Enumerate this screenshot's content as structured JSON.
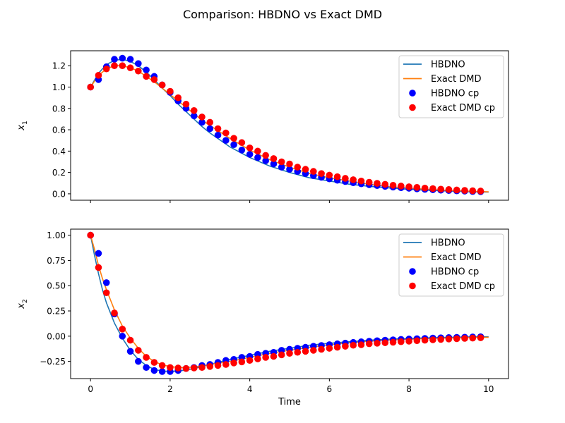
{
  "figure": {
    "title": "Comparison: HBDNO vs Exact DMD"
  },
  "chart_data": [
    {
      "type": "line+scatter",
      "title": "",
      "xlabel": "",
      "ylabel": "x₁",
      "ylabel_main": "x",
      "ylabel_sub": "1",
      "xlim": [
        -0.5,
        10.5
      ],
      "ylim": [
        -0.06,
        1.34
      ],
      "xticks": [
        0,
        2,
        4,
        6,
        8,
        10
      ],
      "xtick_labels_visible": false,
      "yticks": [
        0.0,
        0.2,
        0.4,
        0.6,
        0.8,
        1.0,
        1.2
      ],
      "ytick_labels": [
        "0.0",
        "0.2",
        "0.4",
        "0.6",
        "0.8",
        "1.0",
        "1.2"
      ],
      "legend_position": "top-right",
      "legend": [
        "HBDNO",
        "Exact DMD",
        "HBDNO cp",
        "Exact DMD cp"
      ],
      "series": [
        {
          "name": "HBDNO",
          "kind": "line",
          "color": "#1f77b4",
          "x": [
            0,
            0.2,
            0.4,
            0.6,
            0.8,
            1.0,
            1.2,
            1.4,
            1.6,
            1.8,
            2.0,
            2.2,
            2.4,
            2.6,
            2.8,
            3.0,
            3.5,
            4.0,
            4.5,
            5.0,
            5.5,
            6.0,
            6.5,
            7.0,
            7.5,
            8.0,
            8.5,
            9.0,
            9.5,
            10.0
          ],
          "y": [
            1.0,
            1.13,
            1.21,
            1.25,
            1.26,
            1.24,
            1.2,
            1.14,
            1.07,
            0.99,
            0.92,
            0.84,
            0.77,
            0.7,
            0.63,
            0.57,
            0.44,
            0.34,
            0.26,
            0.2,
            0.15,
            0.12,
            0.09,
            0.07,
            0.055,
            0.042,
            0.033,
            0.026,
            0.02,
            0.016
          ]
        },
        {
          "name": "Exact DMD",
          "kind": "line",
          "color": "#ff7f0e",
          "x": [
            0,
            0.2,
            0.4,
            0.6,
            0.8,
            1.0,
            1.2,
            1.4,
            1.6,
            1.8,
            2.0,
            2.2,
            2.4,
            2.6,
            2.8,
            3.0,
            3.5,
            4.0,
            4.5,
            5.0,
            5.5,
            6.0,
            6.5,
            7.0,
            7.5,
            8.0,
            8.5,
            9.0,
            9.5,
            10.0
          ],
          "y": [
            1.0,
            1.11,
            1.17,
            1.2,
            1.2,
            1.18,
            1.15,
            1.1,
            1.05,
            0.99,
            0.93,
            0.87,
            0.81,
            0.75,
            0.69,
            0.64,
            0.52,
            0.41,
            0.32,
            0.25,
            0.19,
            0.15,
            0.12,
            0.09,
            0.068,
            0.053,
            0.041,
            0.032,
            0.025,
            0.019
          ]
        },
        {
          "name": "HBDNO cp",
          "kind": "scatter",
          "color": "#0000ff",
          "x": [
            0,
            0.2,
            0.4,
            0.6,
            0.8,
            1.0,
            1.2,
            1.4,
            1.6,
            1.8,
            2.0,
            2.2,
            2.4,
            2.6,
            2.8,
            3.0,
            3.2,
            3.4,
            3.6,
            3.8,
            4.0,
            4.2,
            4.4,
            4.6,
            4.8,
            5.0,
            5.2,
            5.4,
            5.6,
            5.8,
            6.0,
            6.2,
            6.4,
            6.6,
            6.8,
            7.0,
            7.2,
            7.4,
            7.6,
            7.8,
            8.0,
            8.2,
            8.4,
            8.6,
            8.8,
            9.0,
            9.2,
            9.4,
            9.6,
            9.8
          ],
          "y": [
            1.0,
            1.07,
            1.19,
            1.26,
            1.27,
            1.26,
            1.22,
            1.16,
            1.1,
            1.02,
            0.95,
            0.87,
            0.8,
            0.73,
            0.67,
            0.61,
            0.55,
            0.5,
            0.46,
            0.41,
            0.37,
            0.34,
            0.31,
            0.28,
            0.25,
            0.23,
            0.21,
            0.19,
            0.17,
            0.155,
            0.14,
            0.127,
            0.115,
            0.104,
            0.094,
            0.085,
            0.077,
            0.07,
            0.063,
            0.057,
            0.052,
            0.047,
            0.042,
            0.038,
            0.034,
            0.031,
            0.028,
            0.025,
            0.022,
            0.02
          ]
        },
        {
          "name": "Exact DMD cp",
          "kind": "scatter",
          "color": "#ff0000",
          "x": [
            0,
            0.2,
            0.4,
            0.6,
            0.8,
            1.0,
            1.2,
            1.4,
            1.6,
            1.8,
            2.0,
            2.2,
            2.4,
            2.6,
            2.8,
            3.0,
            3.2,
            3.4,
            3.6,
            3.8,
            4.0,
            4.2,
            4.4,
            4.6,
            4.8,
            5.0,
            5.2,
            5.4,
            5.6,
            5.8,
            6.0,
            6.2,
            6.4,
            6.6,
            6.8,
            7.0,
            7.2,
            7.4,
            7.6,
            7.8,
            8.0,
            8.2,
            8.4,
            8.6,
            8.8,
            9.0,
            9.2,
            9.4,
            9.6,
            9.8
          ],
          "y": [
            1.0,
            1.11,
            1.17,
            1.2,
            1.2,
            1.18,
            1.15,
            1.1,
            1.07,
            1.02,
            0.96,
            0.9,
            0.84,
            0.78,
            0.72,
            0.67,
            0.61,
            0.57,
            0.52,
            0.48,
            0.43,
            0.4,
            0.36,
            0.33,
            0.3,
            0.28,
            0.25,
            0.23,
            0.21,
            0.19,
            0.175,
            0.16,
            0.145,
            0.132,
            0.12,
            0.108,
            0.098,
            0.089,
            0.08,
            0.073,
            0.066,
            0.06,
            0.054,
            0.049,
            0.044,
            0.04,
            0.036,
            0.032,
            0.029,
            0.026
          ]
        }
      ]
    },
    {
      "type": "line+scatter",
      "title": "",
      "xlabel": "Time",
      "ylabel": "x₂",
      "ylabel_main": "x",
      "ylabel_sub": "2",
      "xlim": [
        -0.5,
        10.5
      ],
      "ylim": [
        -0.42,
        1.06
      ],
      "xticks": [
        0,
        2,
        4,
        6,
        8,
        10
      ],
      "xtick_labels": [
        "0",
        "2",
        "4",
        "6",
        "8",
        "10"
      ],
      "xtick_labels_visible": true,
      "yticks": [
        -0.25,
        0.0,
        0.25,
        0.5,
        0.75,
        1.0
      ],
      "ytick_labels": [
        "−0.25",
        "0.00",
        "0.25",
        "0.50",
        "0.75",
        "1.00"
      ],
      "legend_position": "top-right",
      "legend": [
        "HBDNO",
        "Exact DMD",
        "HBDNO cp",
        "Exact DMD cp"
      ],
      "series": [
        {
          "name": "HBDNO",
          "kind": "line",
          "color": "#1f77b4",
          "x": [
            0,
            0.1,
            0.2,
            0.3,
            0.4,
            0.6,
            0.8,
            1.0,
            1.2,
            1.4,
            1.6,
            1.8,
            2.0,
            2.2,
            2.4,
            2.6,
            2.8,
            3.0,
            3.5,
            4.0,
            4.5,
            5.0,
            5.5,
            6.0,
            6.5,
            7.0,
            7.5,
            8.0,
            8.5,
            9.0,
            9.5,
            10.0
          ],
          "y": [
            1.0,
            0.8,
            0.62,
            0.46,
            0.33,
            0.13,
            -0.02,
            -0.14,
            -0.23,
            -0.29,
            -0.33,
            -0.345,
            -0.35,
            -0.345,
            -0.335,
            -0.32,
            -0.3,
            -0.28,
            -0.23,
            -0.19,
            -0.15,
            -0.12,
            -0.09,
            -0.07,
            -0.055,
            -0.04,
            -0.03,
            -0.022,
            -0.016,
            -0.012,
            -0.008,
            -0.006
          ]
        },
        {
          "name": "Exact DMD",
          "kind": "line",
          "color": "#ff7f0e",
          "x": [
            0,
            0.1,
            0.2,
            0.3,
            0.4,
            0.6,
            0.8,
            1.0,
            1.2,
            1.4,
            1.6,
            1.8,
            2.0,
            2.2,
            2.4,
            2.6,
            2.8,
            3.0,
            3.5,
            4.0,
            4.5,
            5.0,
            5.5,
            6.0,
            6.5,
            7.0,
            7.5,
            8.0,
            8.5,
            9.0,
            9.5,
            10.0
          ],
          "y": [
            1.0,
            0.86,
            0.7,
            0.57,
            0.46,
            0.26,
            0.1,
            -0.02,
            -0.12,
            -0.2,
            -0.25,
            -0.285,
            -0.3,
            -0.31,
            -0.31,
            -0.305,
            -0.295,
            -0.28,
            -0.25,
            -0.21,
            -0.17,
            -0.14,
            -0.11,
            -0.085,
            -0.065,
            -0.05,
            -0.038,
            -0.03,
            -0.023,
            -0.018,
            -0.014,
            -0.011
          ]
        },
        {
          "name": "HBDNO cp",
          "kind": "scatter",
          "color": "#0000ff",
          "x": [
            0,
            0.2,
            0.4,
            0.6,
            0.8,
            1.0,
            1.2,
            1.4,
            1.6,
            1.8,
            2.0,
            2.2,
            2.4,
            2.6,
            2.8,
            3.0,
            3.2,
            3.4,
            3.6,
            3.8,
            4.0,
            4.2,
            4.4,
            4.6,
            4.8,
            5.0,
            5.2,
            5.4,
            5.6,
            5.8,
            6.0,
            6.2,
            6.4,
            6.6,
            6.8,
            7.0,
            7.2,
            7.4,
            7.6,
            7.8,
            8.0,
            8.2,
            8.4,
            8.6,
            8.8,
            9.0,
            9.2,
            9.4,
            9.6,
            9.8
          ],
          "y": [
            1.0,
            0.82,
            0.53,
            0.22,
            0.0,
            -0.15,
            -0.25,
            -0.31,
            -0.34,
            -0.35,
            -0.35,
            -0.34,
            -0.32,
            -0.31,
            -0.29,
            -0.28,
            -0.26,
            -0.24,
            -0.23,
            -0.21,
            -0.2,
            -0.18,
            -0.17,
            -0.16,
            -0.14,
            -0.13,
            -0.12,
            -0.11,
            -0.1,
            -0.092,
            -0.084,
            -0.076,
            -0.069,
            -0.062,
            -0.056,
            -0.05,
            -0.045,
            -0.04,
            -0.036,
            -0.032,
            -0.028,
            -0.025,
            -0.022,
            -0.019,
            -0.016,
            -0.014,
            -0.012,
            -0.01,
            -0.008,
            -0.006
          ]
        },
        {
          "name": "Exact DMD cp",
          "kind": "scatter",
          "color": "#ff0000",
          "x": [
            0,
            0.2,
            0.4,
            0.6,
            0.8,
            1.0,
            1.2,
            1.4,
            1.6,
            1.8,
            2.0,
            2.2,
            2.4,
            2.6,
            2.8,
            3.0,
            3.2,
            3.4,
            3.6,
            3.8,
            4.0,
            4.2,
            4.4,
            4.6,
            4.8,
            5.0,
            5.2,
            5.4,
            5.6,
            5.8,
            6.0,
            6.2,
            6.4,
            6.6,
            6.8,
            7.0,
            7.2,
            7.4,
            7.6,
            7.8,
            8.0,
            8.2,
            8.4,
            8.6,
            8.8,
            9.0,
            9.2,
            9.4,
            9.6,
            9.8
          ],
          "y": [
            1.0,
            0.68,
            0.43,
            0.23,
            0.07,
            -0.04,
            -0.14,
            -0.21,
            -0.26,
            -0.29,
            -0.31,
            -0.315,
            -0.32,
            -0.315,
            -0.31,
            -0.3,
            -0.29,
            -0.28,
            -0.265,
            -0.255,
            -0.24,
            -0.225,
            -0.21,
            -0.2,
            -0.185,
            -0.17,
            -0.16,
            -0.15,
            -0.14,
            -0.13,
            -0.12,
            -0.11,
            -0.1,
            -0.09,
            -0.085,
            -0.075,
            -0.07,
            -0.065,
            -0.06,
            -0.055,
            -0.05,
            -0.045,
            -0.04,
            -0.036,
            -0.032,
            -0.028,
            -0.025,
            -0.022,
            -0.019,
            -0.016
          ]
        }
      ]
    }
  ]
}
